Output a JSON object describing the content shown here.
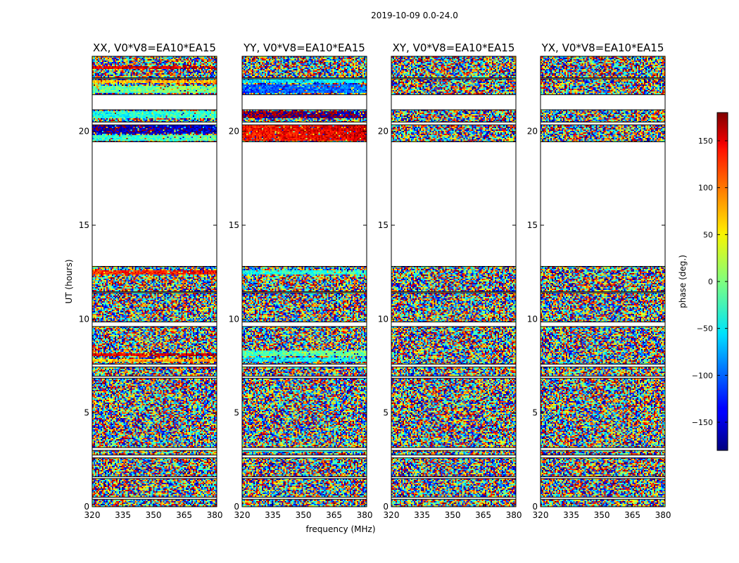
{
  "figure": {
    "title": "2019-10-09 0.0-24.0",
    "xlabel": "frequency (MHz)",
    "ylabel": "UT (hours)"
  },
  "chart_data": {
    "type": "heatmap",
    "title": "2019-10-09 0.0-24.0",
    "xlabel": "frequency (MHz)",
    "ylabel": "UT (hours)",
    "xlim": [
      320,
      381
    ],
    "ylim": [
      0,
      24
    ],
    "xticks": [
      320,
      335,
      350,
      365,
      380
    ],
    "yticks": [
      0,
      5,
      10,
      15,
      20
    ],
    "colorbar": {
      "label": "phase (deg.)",
      "range": [
        -180,
        180
      ],
      "ticks": [
        150,
        100,
        50,
        0,
        -50,
        -100,
        -150
      ],
      "colormap": "jet"
    },
    "panels": [
      {
        "title": "XX, V0*V8=EA10*EA15",
        "correlation": "XX",
        "coherent_bands": [
          {
            "ut": [
              22.05,
              22.45
            ],
            "phase": -15
          },
          {
            "ut": [
              22.55,
              22.75
            ],
            "phase": 60
          },
          {
            "ut": [
              23.3,
              23.5
            ],
            "phase": 140
          },
          {
            "ut": [
              20.7,
              21.1
            ],
            "phase": -40
          },
          {
            "ut": [
              19.9,
              20.4
            ],
            "phase": -170
          },
          {
            "ut": [
              19.5,
              19.8
            ],
            "phase": -30
          },
          {
            "ut": [
              12.4,
              12.6
            ],
            "phase": 120
          },
          {
            "ut": [
              8.0,
              8.2
            ],
            "phase": 140
          },
          {
            "ut": [
              7.7,
              7.85
            ],
            "phase": 60
          }
        ]
      },
      {
        "title": "YY, V0*V8=EA10*EA15",
        "correlation": "YY",
        "coherent_bands": [
          {
            "ut": [
              22.05,
              22.5
            ],
            "phase": -110
          },
          {
            "ut": [
              22.55,
              22.8
            ],
            "phase": -60
          },
          {
            "ut": [
              20.7,
              21.1
            ],
            "phase": 170
          },
          {
            "ut": [
              19.5,
              20.3
            ],
            "phase": 130
          },
          {
            "ut": [
              12.4,
              12.6
            ],
            "phase": -40
          },
          {
            "ut": [
              8.05,
              8.3
            ],
            "phase": -20
          },
          {
            "ut": [
              7.7,
              7.95
            ],
            "phase": -60
          },
          {
            "ut": [
              2.95,
              3.15
            ],
            "phase": -50
          }
        ]
      },
      {
        "title": "XY, V0*V8=EA10*EA15",
        "correlation": "XY",
        "coherent_bands": []
      },
      {
        "title": "YX, V0*V8=EA10*EA15",
        "correlation": "YX",
        "coherent_bands": []
      }
    ],
    "flagged_ut_gaps": [
      [
        12.8,
        19.45
      ],
      [
        21.15,
        21.95
      ],
      [
        20.35,
        20.5
      ],
      [
        9.6,
        9.85
      ],
      [
        7.45,
        7.6
      ],
      [
        6.85,
        6.95
      ],
      [
        3.0,
        3.15
      ],
      [
        2.6,
        2.75
      ],
      [
        1.5,
        1.6
      ],
      [
        0.4,
        0.5
      ],
      [
        22.8,
        22.85
      ],
      [
        11.4,
        11.45
      ]
    ]
  }
}
